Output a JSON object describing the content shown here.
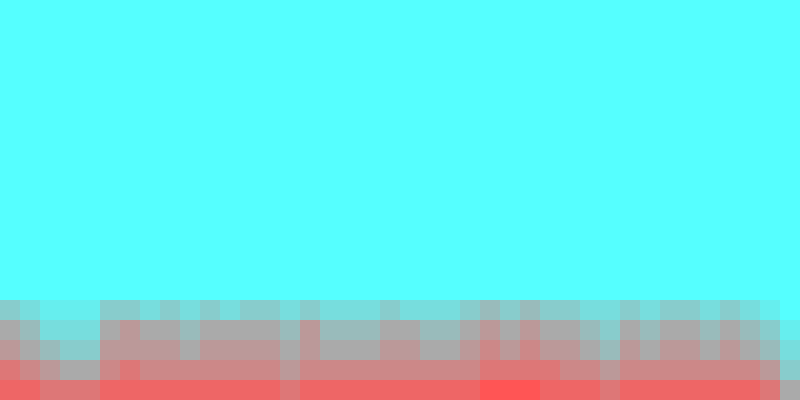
{
  "chart_data": {
    "type": "heatmap",
    "tick_labels": false,
    "grid": false,
    "colors": [
      "#55ffff",
      "#ff5555"
    ],
    "zlim": [
      0,
      1
    ],
    "cells": [
      [
        0,
        0,
        0,
        0,
        0,
        0,
        0,
        0,
        0,
        0,
        0,
        0,
        0,
        0,
        0,
        0,
        0,
        0,
        0,
        0,
        0,
        0,
        0,
        0,
        0,
        0,
        0,
        0,
        0,
        0,
        0,
        0,
        0,
        0,
        0,
        0,
        0,
        0,
        0,
        0
      ],
      [
        0,
        0,
        0,
        0,
        0,
        0,
        0,
        0,
        0,
        0,
        0,
        0,
        0,
        0,
        0,
        0,
        0,
        0,
        0,
        0,
        0,
        0,
        0,
        0,
        0,
        0,
        0,
        0,
        0,
        0,
        0,
        0,
        0,
        0,
        0,
        0,
        0,
        0,
        0,
        0
      ],
      [
        0,
        0,
        0,
        0,
        0,
        0,
        0,
        0,
        0,
        0,
        0,
        0,
        0,
        0,
        0,
        0,
        0,
        0,
        0,
        0,
        0,
        0,
        0,
        0,
        0,
        0,
        0,
        0,
        0,
        0,
        0,
        0,
        0,
        0,
        0,
        0,
        0,
        0,
        0,
        0
      ],
      [
        0,
        0,
        0,
        0,
        0,
        0,
        0,
        0,
        0,
        0,
        0,
        0,
        0,
        0,
        0,
        0,
        0,
        0,
        0,
        0,
        0,
        0,
        0,
        0,
        0,
        0,
        0,
        0,
        0,
        0,
        0,
        0,
        0,
        0,
        0,
        0,
        0,
        0,
        0,
        0
      ],
      [
        0,
        0,
        0,
        0,
        0,
        0,
        0,
        0,
        0,
        0,
        0,
        0,
        0,
        0,
        0,
        0,
        0,
        0,
        0,
        0,
        0,
        0,
        0,
        0,
        0,
        0,
        0,
        0,
        0,
        0,
        0,
        0,
        0,
        0,
        0,
        0,
        0,
        0,
        0,
        0
      ],
      [
        0,
        0,
        0,
        0,
        0,
        0,
        0,
        0,
        0,
        0,
        0,
        0,
        0,
        0,
        0,
        0,
        0,
        0,
        0,
        0,
        0,
        0,
        0,
        0,
        0,
        0,
        0,
        0,
        0,
        0,
        0,
        0,
        0,
        0,
        0,
        0,
        0,
        0,
        0,
        0
      ],
      [
        0,
        0,
        0,
        0,
        0,
        0,
        0,
        0,
        0,
        0,
        0,
        0,
        0,
        0,
        0,
        0,
        0,
        0,
        0,
        0,
        0,
        0,
        0,
        0,
        0,
        0,
        0,
        0,
        0,
        0,
        0,
        0,
        0,
        0,
        0,
        0,
        0,
        0,
        0,
        0
      ],
      [
        0,
        0,
        0,
        0,
        0,
        0,
        0,
        0,
        0,
        0,
        0,
        0,
        0,
        0,
        0,
        0,
        0,
        0,
        0,
        0,
        0,
        0,
        0,
        0,
        0,
        0,
        0,
        0,
        0,
        0,
        0,
        0,
        0,
        0,
        0,
        0,
        0,
        0,
        0,
        0
      ],
      [
        0,
        0,
        0,
        0,
        0,
        0,
        0,
        0,
        0,
        0,
        0,
        0,
        0,
        0,
        0,
        0,
        0,
        0,
        0,
        0,
        0,
        0,
        0,
        0,
        0,
        0,
        0,
        0,
        0,
        0,
        0,
        0,
        0,
        0,
        0,
        0,
        0,
        0,
        0,
        0
      ],
      [
        0,
        0,
        0,
        0,
        0,
        0,
        0,
        0,
        0,
        0,
        0,
        0,
        0,
        0,
        0,
        0,
        0,
        0,
        0,
        0,
        0,
        0,
        0,
        0,
        0,
        0,
        0,
        0,
        0,
        0,
        0,
        0,
        0,
        0,
        0,
        0,
        0,
        0,
        0,
        0
      ],
      [
        0,
        0,
        0,
        0,
        0,
        0,
        0,
        0,
        0,
        0,
        0,
        0,
        0,
        0,
        0,
        0,
        0,
        0,
        0,
        0,
        0,
        0,
        0,
        0,
        0,
        0,
        0,
        0,
        0,
        0,
        0,
        0,
        0,
        0,
        0,
        0,
        0,
        0,
        0,
        0
      ],
      [
        0,
        0,
        0,
        0,
        0,
        0,
        0,
        0,
        0,
        0,
        0,
        0,
        0,
        0,
        0,
        0,
        0,
        0,
        0,
        0,
        0,
        0,
        0,
        0,
        0,
        0,
        0,
        0,
        0,
        0,
        0,
        0,
        0,
        0,
        0,
        0,
        0,
        0,
        0,
        0
      ],
      [
        0,
        0,
        0,
        0,
        0,
        0,
        0,
        0,
        0,
        0,
        0,
        0,
        0,
        0,
        0,
        0,
        0,
        0,
        0,
        0,
        0,
        0,
        0,
        0,
        0,
        0,
        0,
        0,
        0,
        0,
        0,
        0,
        0,
        0,
        0,
        0,
        0,
        0,
        0,
        0
      ],
      [
        0,
        0,
        0,
        0,
        0,
        0,
        0,
        0,
        0,
        0,
        0,
        0,
        0,
        0,
        0,
        0,
        0,
        0,
        0,
        0,
        0,
        0,
        0,
        0,
        0,
        0,
        0,
        0,
        0,
        0,
        0,
        0,
        0,
        0,
        0,
        0,
        0,
        0,
        0,
        0
      ],
      [
        0,
        0,
        0,
        0,
        0,
        0,
        0,
        0,
        0,
        0,
        0,
        0,
        0,
        0,
        0,
        0,
        0,
        0,
        0,
        0,
        0,
        0,
        0,
        0,
        0,
        0,
        0,
        0,
        0,
        0,
        0,
        0,
        0,
        0,
        0,
        0,
        0,
        0,
        0,
        0
      ],
      [
        0.3,
        0.2,
        0.1,
        0.1,
        0.1,
        0.3,
        0.3,
        0.2,
        0.3,
        0.2,
        0.3,
        0.2,
        0.3,
        0.3,
        0.2,
        0.3,
        0.2,
        0.2,
        0.2,
        0.3,
        0.2,
        0.2,
        0.2,
        0.3,
        0.4,
        0.3,
        0.4,
        0.3,
        0.3,
        0.2,
        0.2,
        0.3,
        0.2,
        0.3,
        0.3,
        0.2,
        0.3,
        0.2,
        0.1,
        0.0
      ],
      [
        0.5,
        0.4,
        0.2,
        0.2,
        0.2,
        0.5,
        0.6,
        0.5,
        0.5,
        0.4,
        0.5,
        0.5,
        0.5,
        0.5,
        0.4,
        0.6,
        0.4,
        0.4,
        0.4,
        0.5,
        0.5,
        0.4,
        0.4,
        0.5,
        0.6,
        0.5,
        0.6,
        0.5,
        0.5,
        0.4,
        0.3,
        0.5,
        0.4,
        0.5,
        0.5,
        0.4,
        0.5,
        0.4,
        0.3,
        0.1
      ],
      [
        0.6,
        0.5,
        0.4,
        0.3,
        0.3,
        0.6,
        0.6,
        0.6,
        0.6,
        0.5,
        0.6,
        0.6,
        0.6,
        0.6,
        0.5,
        0.6,
        0.5,
        0.5,
        0.5,
        0.6,
        0.6,
        0.5,
        0.5,
        0.6,
        0.7,
        0.6,
        0.7,
        0.6,
        0.6,
        0.5,
        0.4,
        0.6,
        0.5,
        0.6,
        0.6,
        0.5,
        0.6,
        0.5,
        0.4,
        0.2
      ],
      [
        0.8,
        0.7,
        0.6,
        0.5,
        0.5,
        0.7,
        0.8,
        0.7,
        0.7,
        0.7,
        0.7,
        0.7,
        0.7,
        0.7,
        0.6,
        0.7,
        0.7,
        0.7,
        0.7,
        0.7,
        0.7,
        0.7,
        0.7,
        0.7,
        0.8,
        0.8,
        0.8,
        0.8,
        0.7,
        0.7,
        0.6,
        0.7,
        0.7,
        0.7,
        0.7,
        0.7,
        0.7,
        0.7,
        0.6,
        0.3
      ],
      [
        0.9,
        0.9,
        0.8,
        0.8,
        0.8,
        0.9,
        0.9,
        0.9,
        0.9,
        0.9,
        0.9,
        0.9,
        0.9,
        0.9,
        0.8,
        0.9,
        0.9,
        0.9,
        0.9,
        0.9,
        0.9,
        0.9,
        0.9,
        0.9,
        1.0,
        1.0,
        1.0,
        0.9,
        0.9,
        0.9,
        0.8,
        0.9,
        0.9,
        0.9,
        0.9,
        0.9,
        0.9,
        0.9,
        0.8,
        0.5
      ]
    ]
  }
}
